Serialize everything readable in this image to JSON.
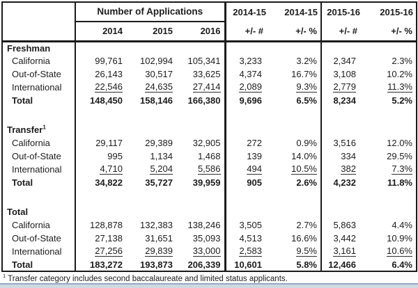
{
  "table": {
    "header": {
      "applications_group": "Number of Applications",
      "years": [
        "2014",
        "2015",
        "2016"
      ],
      "groups": [
        {
          "period": "2014-15",
          "count_label": "+/- #",
          "percent_label": "+/- %"
        },
        {
          "period": "2015-16",
          "count_label": "+/- #",
          "percent_label": "+/- %"
        }
      ]
    },
    "sections": [
      {
        "title": "Freshman",
        "superscript": "",
        "rows": [
          {
            "label": "California",
            "values": [
              "99,761",
              "102,994",
              "105,341",
              "3,233",
              "3.2%",
              "2,347",
              "2.3%"
            ],
            "underline": false,
            "bold": false
          },
          {
            "label": "Out-of-State",
            "values": [
              "26,143",
              "30,517",
              "33,625",
              "4,374",
              "16.7%",
              "3,108",
              "10.2%"
            ],
            "underline": false,
            "bold": false
          },
          {
            "label": "International",
            "values": [
              "22,546",
              "24,635",
              "27,414",
              "2,089",
              "9.3%",
              "2,779",
              "11.3%"
            ],
            "underline": true,
            "bold": false
          },
          {
            "label": "Total",
            "values": [
              "148,450",
              "158,146",
              "166,380",
              "9,696",
              "6.5%",
              "8,234",
              "5.2%"
            ],
            "underline": false,
            "bold": true
          }
        ]
      },
      {
        "title": "Transfer",
        "superscript": "1",
        "rows": [
          {
            "label": "California",
            "values": [
              "29,117",
              "29,389",
              "32,905",
              "272",
              "0.9%",
              "3,516",
              "12.0%"
            ],
            "underline": false,
            "bold": false
          },
          {
            "label": "Out-of-State",
            "values": [
              "995",
              "1,134",
              "1,468",
              "139",
              "14.0%",
              "334",
              "29.5%"
            ],
            "underline": false,
            "bold": false
          },
          {
            "label": "International",
            "values": [
              "4,710",
              "5,204",
              "5,586",
              "494",
              "10.5%",
              "382",
              "7.3%"
            ],
            "underline": true,
            "bold": false
          },
          {
            "label": "Total",
            "values": [
              "34,822",
              "35,727",
              "39,959",
              "905",
              "2.6%",
              "4,232",
              "11.8%"
            ],
            "underline": false,
            "bold": true
          }
        ]
      },
      {
        "title": "Total",
        "superscript": "",
        "rows": [
          {
            "label": "California",
            "values": [
              "128,878",
              "132,383",
              "138,246",
              "3,505",
              "2.7%",
              "5,863",
              "4.4%"
            ],
            "underline": false,
            "bold": false
          },
          {
            "label": "Out-of-State",
            "values": [
              "27,138",
              "31,651",
              "35,093",
              "4,513",
              "16.6%",
              "3,442",
              "10.9%"
            ],
            "underline": false,
            "bold": false
          },
          {
            "label": "International",
            "values": [
              "27,256",
              "29,839",
              "33,000",
              "2,583",
              "9.5%",
              "3,161",
              "10.6%"
            ],
            "underline": true,
            "bold": false
          },
          {
            "label": "Total",
            "values": [
              "183,272",
              "193,873",
              "206,339",
              "10,601",
              "5.8%",
              "12,466",
              "6.4%"
            ],
            "underline": false,
            "bold": true
          }
        ]
      }
    ]
  },
  "footnote": {
    "marker": "1",
    "text": "Transfer category includes second baccalaureate and limited status applicants."
  },
  "colors": {
    "border": "#1a1a1a",
    "text": "#1c1c1c",
    "background": "#fcfcfc",
    "bottom_bar_dark": "#96abbe",
    "bottom_bar_light": "#cfd9e2"
  }
}
